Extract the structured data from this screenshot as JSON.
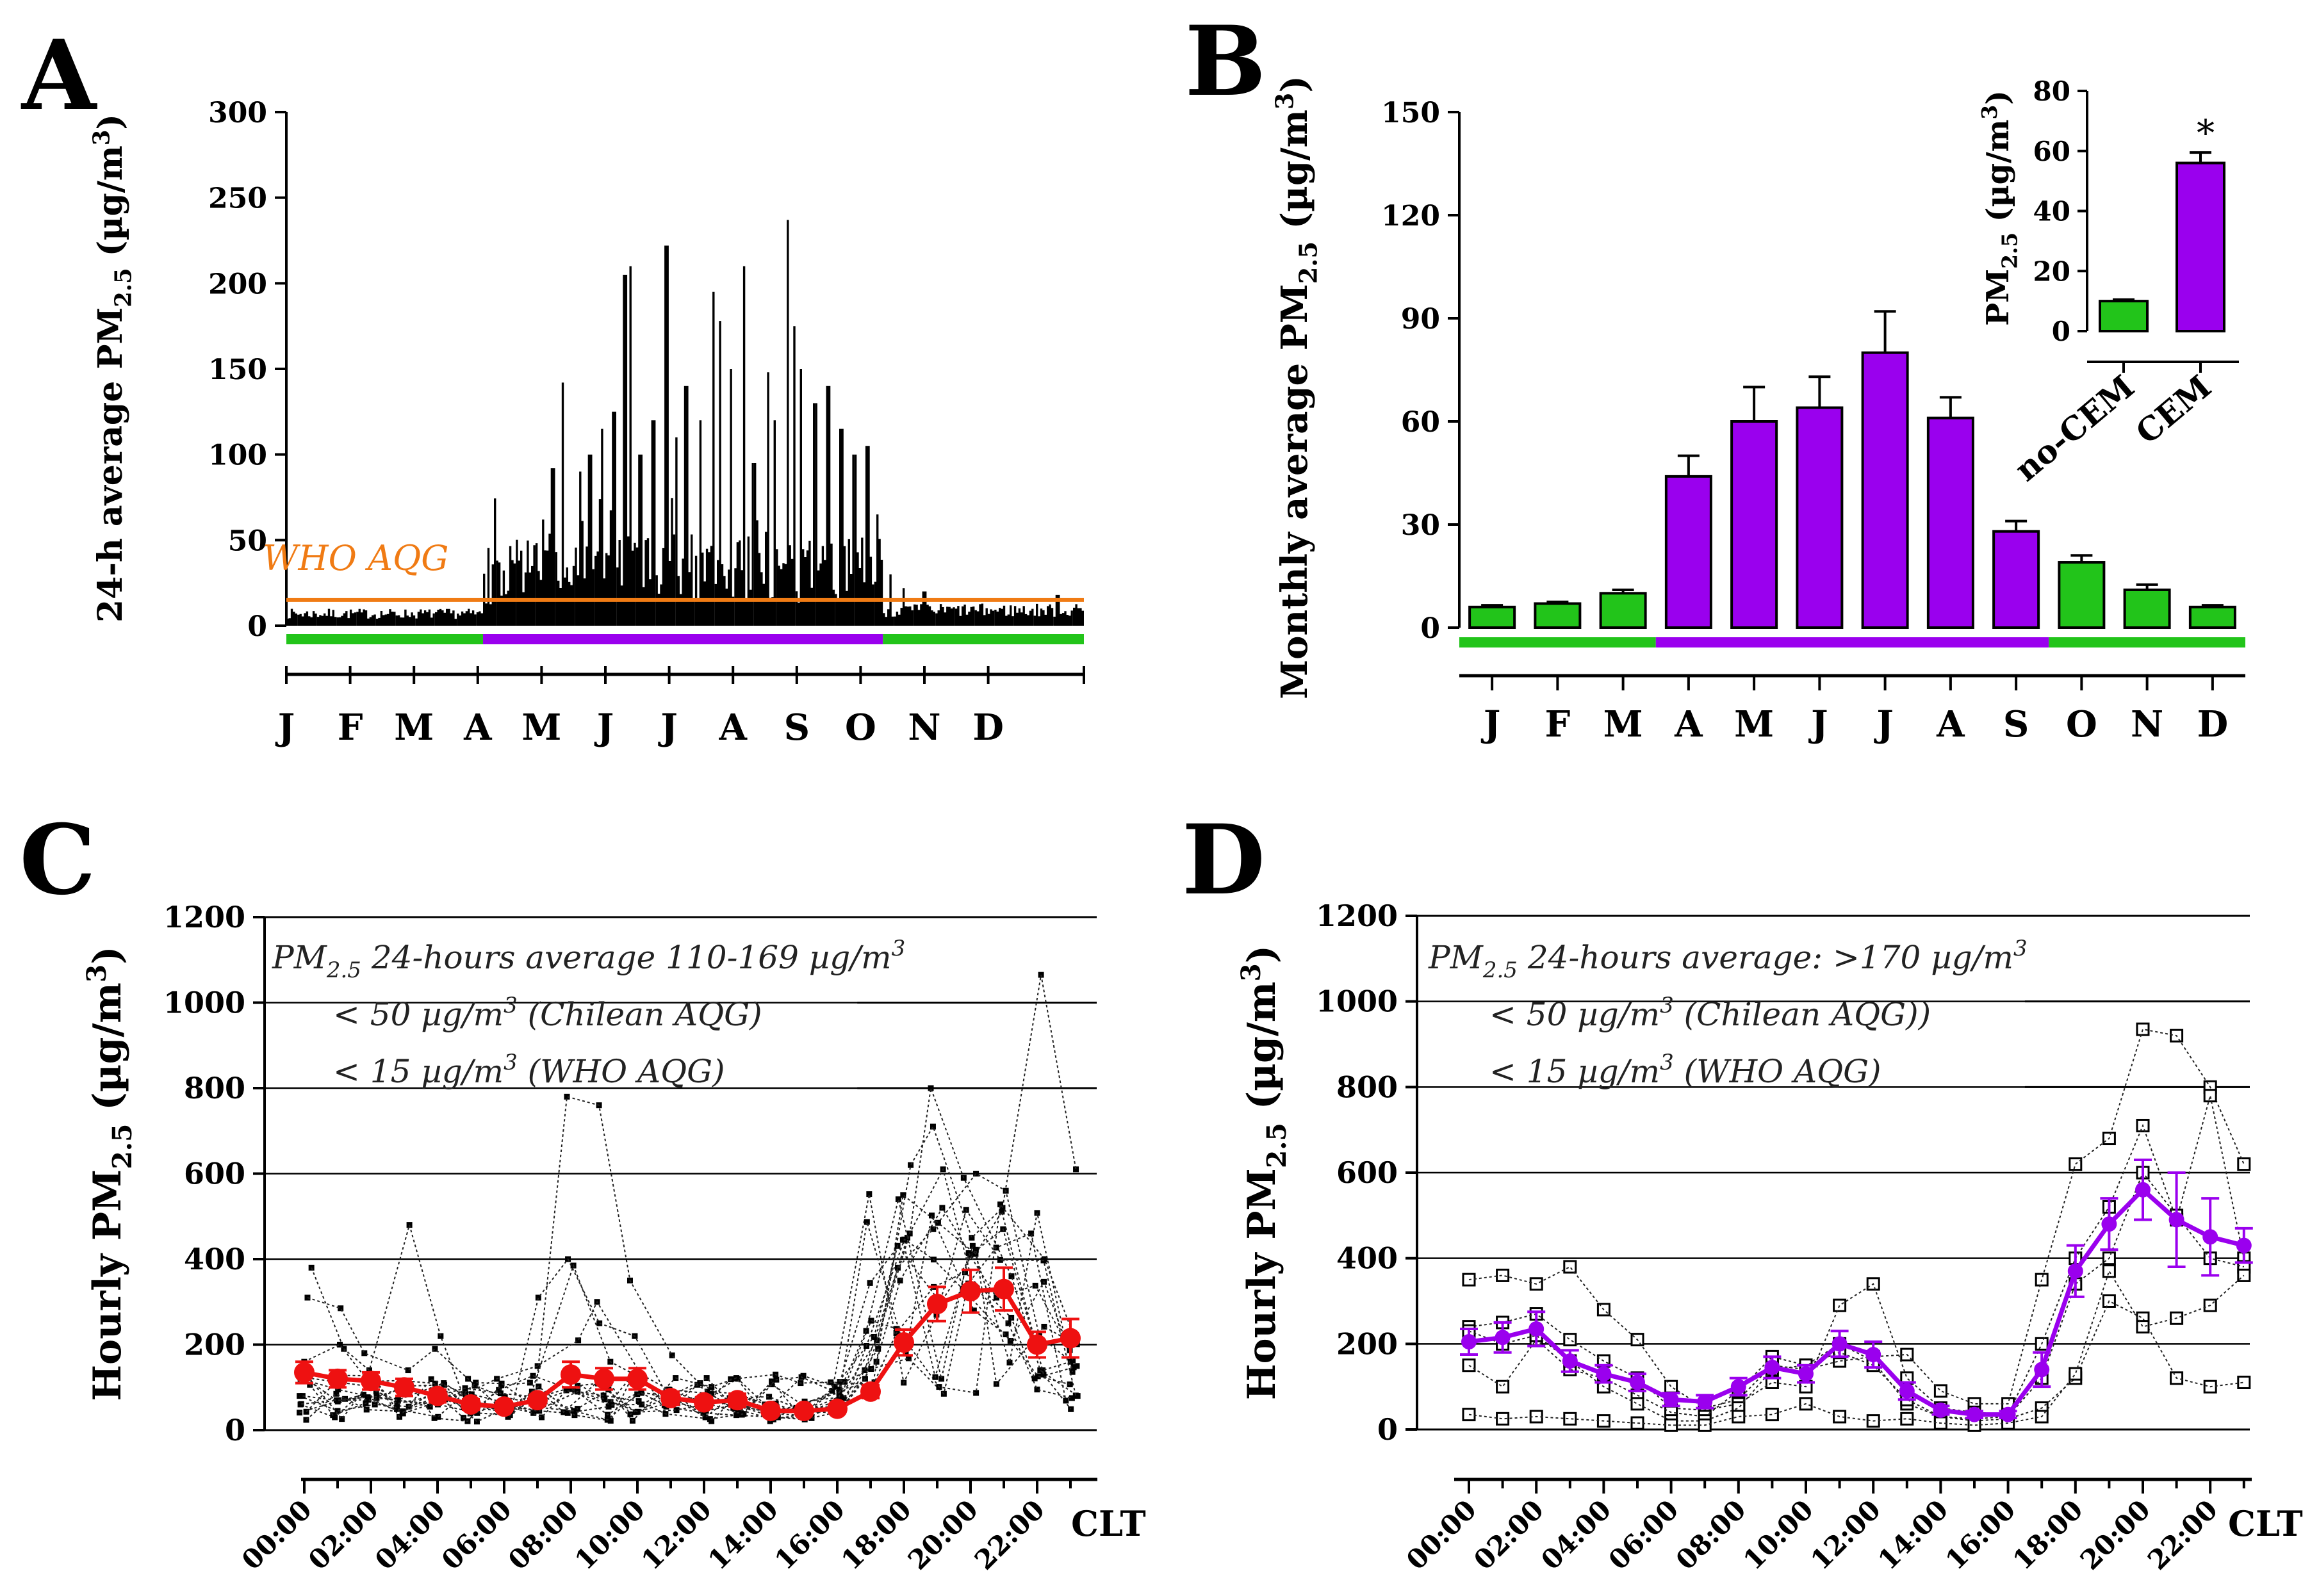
{
  "colors": {
    "green": "#22c41a",
    "purple": "#9a00ee",
    "orange": "#f07b14",
    "red": "#ee1111",
    "axis": "#000000"
  },
  "chart_data": [
    {
      "panel": "A",
      "type": "bar",
      "ylabel_main": "24-h average PM",
      "ylabel_sub": "2.5",
      "ylabel_unit": " (µg/m",
      "ylabel_sup": "3",
      "ylabel_close": ")",
      "ylim": [
        0,
        300
      ],
      "yticks": [
        "0",
        "50",
        "100",
        "150",
        "200",
        "250",
        "300"
      ],
      "months": [
        "J",
        "F",
        "M",
        "A",
        "M",
        "J",
        "J",
        "A",
        "S",
        "O",
        "N",
        "D"
      ],
      "who_label": "WHO AQG",
      "who_value": 15,
      "season_bar": [
        {
          "from": 0,
          "to": 3,
          "color": "green"
        },
        {
          "from": 3,
          "to": 9,
          "color": "purple"
        },
        {
          "from": 9,
          "to": 12,
          "color": "green"
        }
      ],
      "peaks": [
        [
          3.55,
          38
        ],
        [
          3.9,
          62
        ],
        [
          4.05,
          92
        ],
        [
          4.2,
          142
        ],
        [
          4.45,
          90
        ],
        [
          4.6,
          100
        ],
        [
          4.78,
          115
        ],
        [
          4.95,
          125
        ],
        [
          5.12,
          205
        ],
        [
          5.2,
          210
        ],
        [
          5.35,
          100
        ],
        [
          5.55,
          120
        ],
        [
          5.75,
          222
        ],
        [
          5.9,
          110
        ],
        [
          6.05,
          140
        ],
        [
          6.25,
          120
        ],
        [
          6.45,
          195
        ],
        [
          6.55,
          178
        ],
        [
          6.7,
          150
        ],
        [
          6.9,
          210
        ],
        [
          7.05,
          95
        ],
        [
          7.25,
          148
        ],
        [
          7.35,
          120
        ],
        [
          7.55,
          237
        ],
        [
          7.65,
          175
        ],
        [
          7.75,
          150
        ],
        [
          7.95,
          130
        ],
        [
          8.15,
          140
        ],
        [
          8.35,
          115
        ],
        [
          8.55,
          100
        ],
        [
          8.75,
          105
        ],
        [
          8.9,
          65
        ],
        [
          9.1,
          30
        ],
        [
          9.3,
          22
        ],
        [
          9.6,
          20
        ],
        [
          11.6,
          18
        ]
      ]
    },
    {
      "panel": "B",
      "type": "bar",
      "ylabel_main": "Monthly average PM",
      "ylabel_sub": "2.5",
      "ylabel_unit": " (µg/m",
      "ylabel_sup": "3",
      "ylabel_close": ")",
      "ylim": [
        0,
        150
      ],
      "yticks": [
        "0",
        "30",
        "60",
        "90",
        "120",
        "150"
      ],
      "categories": [
        "J",
        "F",
        "M",
        "A",
        "M",
        "J",
        "J",
        "A",
        "S",
        "O",
        "N",
        "D"
      ],
      "values": [
        6,
        7,
        10,
        44,
        60,
        64,
        80,
        61,
        28,
        19,
        11,
        6
      ],
      "errors": [
        0.5,
        0.5,
        1,
        6,
        10,
        9,
        12,
        6,
        3,
        2,
        1.5,
        0.5
      ],
      "bar_colors": [
        "green",
        "green",
        "green",
        "purple",
        "purple",
        "purple",
        "purple",
        "purple",
        "purple",
        "green",
        "green",
        "green"
      ],
      "season_bar": [
        {
          "from": 0,
          "to": 3,
          "color": "green"
        },
        {
          "from": 3,
          "to": 9,
          "color": "purple"
        },
        {
          "from": 9,
          "to": 12,
          "color": "green"
        }
      ],
      "inset": {
        "ylabel_main": "PM",
        "ylabel_sub": "2.5",
        "ylabel_unit": " (µg/m",
        "ylabel_sup": "3",
        "ylabel_close": ")",
        "ylim": [
          0,
          80
        ],
        "yticks": [
          "0",
          "20",
          "40",
          "60",
          "80"
        ],
        "categories": [
          "no-CEM",
          "CEM"
        ],
        "values": [
          10,
          56
        ],
        "errors": [
          0.5,
          3.5
        ],
        "bar_colors": [
          "green",
          "purple"
        ],
        "significance": "*"
      }
    },
    {
      "panel": "C",
      "type": "line",
      "ylabel_main": "Hourly PM",
      "ylabel_sub": "2.5",
      "ylabel_unit": " (µg/m",
      "ylabel_sup": "3",
      "ylabel_close": ")",
      "ylim": [
        0,
        1200
      ],
      "yticks": [
        "0",
        "200",
        "400",
        "600",
        "800",
        "1000",
        "1200"
      ],
      "xticks": [
        "00:00",
        "02:00",
        "04:00",
        "06:00",
        "08:00",
        "10:00",
        "12:00",
        "14:00",
        "16:00",
        "18:00",
        "20:00",
        "22:00"
      ],
      "xunit": "CLT",
      "annotation_lines": [
        {
          "pre": "PM",
          "sub": "2.5",
          "post": " 24-hours average 110-169 µg/m",
          "sup": "3",
          "tail": ""
        },
        {
          "pre": "< 50 µg/m",
          "sub": "",
          "post": "",
          "sup": "3",
          "tail": " (Chilean AQG)"
        },
        {
          "pre": "< 15 µg/m",
          "sub": "",
          "post": "",
          "sup": "3",
          "tail": " (WHO AQG)"
        }
      ],
      "guide_lines": [
        {
          "y": 1000,
          "x_from": 16.6
        },
        {
          "y": 800,
          "x_from": 16.6
        }
      ],
      "mean_color": "red",
      "mean": [
        135,
        120,
        115,
        100,
        80,
        60,
        55,
        70,
        130,
        120,
        120,
        75,
        65,
        70,
        45,
        45,
        50,
        90,
        205,
        295,
        325,
        330,
        200,
        215
      ],
      "sem": [
        25,
        20,
        20,
        20,
        15,
        12,
        10,
        12,
        30,
        25,
        25,
        15,
        12,
        15,
        10,
        10,
        10,
        15,
        30,
        40,
        50,
        50,
        30,
        45
      ],
      "individual": [
        [
          80,
          45,
          60,
          55,
          80,
          85,
          120,
          150,
          210,
          300,
          130,
          95,
          85,
          120,
          60,
          45,
          40,
          160,
          350,
          520,
          410,
          470,
          140,
          160
        ],
        [
          310,
          285,
          180,
          140,
          190,
          120,
          60,
          45,
          40,
          55,
          90,
          75,
          70,
          55,
          30,
          25,
          60,
          210,
          380,
          470,
          600,
          560,
          220,
          150
        ],
        [
          380,
          190,
          140,
          480,
          220,
          60,
          45,
          90,
          385,
          160,
          120,
          55,
          40,
          35,
          30,
          28,
          45,
          140,
          450,
          610,
          340,
          250,
          95,
          75
        ],
        [
          160,
          200,
          90,
          70,
          60,
          40,
          35,
          310,
          400,
          250,
          220,
          70,
          45,
          60,
          38,
          35,
          75,
          190,
          620,
          710,
          450,
          520,
          1065,
          610
        ],
        [
          120,
          95,
          75,
          70,
          110,
          65,
          55,
          40,
          780,
          760,
          350,
          175,
          90,
          85,
          45,
          40,
          50,
          120,
          460,
          800,
          590,
          360,
          140,
          80
        ]
      ]
    },
    {
      "panel": "D",
      "type": "line",
      "ylabel_main": "Hourly PM",
      "ylabel_sub": "2.5",
      "ylabel_unit": " (µg/m",
      "ylabel_sup": "3",
      "ylabel_close": ")",
      "ylim": [
        0,
        1200
      ],
      "yticks": [
        "0",
        "200",
        "400",
        "600",
        "800",
        "1000",
        "1200"
      ],
      "xticks": [
        "00:00",
        "02:00",
        "04:00",
        "06:00",
        "08:00",
        "10:00",
        "12:00",
        "14:00",
        "16:00",
        "18:00",
        "20:00",
        "22:00"
      ],
      "xunit": "CLT",
      "annotation_lines": [
        {
          "pre": "PM",
          "sub": "2.5",
          "post": " 24-hours average: >170 µg/m",
          "sup": "3",
          "tail": ""
        },
        {
          "pre": "< 50 µg/m",
          "sub": "",
          "post": "",
          "sup": "3",
          "tail": " (Chilean AQG))"
        },
        {
          "pre": "< 15 µg/m",
          "sub": "",
          "post": "",
          "sup": "3",
          "tail": " (WHO AQG)"
        }
      ],
      "guide_lines": [
        {
          "y": 1000,
          "x_from": 16.5
        },
        {
          "y": 800,
          "x_from": 16.5
        }
      ],
      "mean_color": "purple",
      "mean": [
        205,
        215,
        235,
        160,
        130,
        110,
        70,
        65,
        100,
        145,
        130,
        200,
        175,
        90,
        45,
        35,
        35,
        140,
        370,
        480,
        560,
        490,
        450,
        430
      ],
      "sem": [
        30,
        35,
        40,
        25,
        20,
        20,
        15,
        15,
        20,
        25,
        20,
        30,
        30,
        20,
        10,
        8,
        8,
        40,
        60,
        60,
        70,
        110,
        90,
        40
      ],
      "individual": [
        [
          350,
          360,
          340,
          380,
          280,
          210,
          100,
          50,
          70,
          150,
          140,
          160,
          170,
          175,
          90,
          60,
          60,
          350,
          620,
          680,
          935,
          920,
          800,
          620
        ],
        [
          240,
          250,
          270,
          210,
          160,
          120,
          50,
          45,
          60,
          110,
          100,
          290,
          340,
          120,
          50,
          40,
          35,
          200,
          400,
          520,
          710,
          490,
          780,
          400
        ],
        [
          150,
          100,
          210,
          140,
          120,
          80,
          40,
          30,
          90,
          170,
          150,
          200,
          160,
          60,
          30,
          25,
          30,
          120,
          340,
          400,
          600,
          500,
          400,
          380
        ],
        [
          230,
          200,
          220,
          160,
          100,
          60,
          20,
          20,
          50,
          140,
          150,
          180,
          150,
          70,
          30,
          20,
          25,
          50,
          120,
          300,
          260,
          120,
          100,
          110
        ],
        [
          35,
          25,
          30,
          25,
          20,
          15,
          10,
          10,
          30,
          35,
          60,
          30,
          20,
          25,
          15,
          10,
          15,
          30,
          130,
          370,
          240,
          260,
          290,
          360
        ]
      ]
    }
  ],
  "panel_letters": [
    "A",
    "B",
    "C",
    "D"
  ]
}
